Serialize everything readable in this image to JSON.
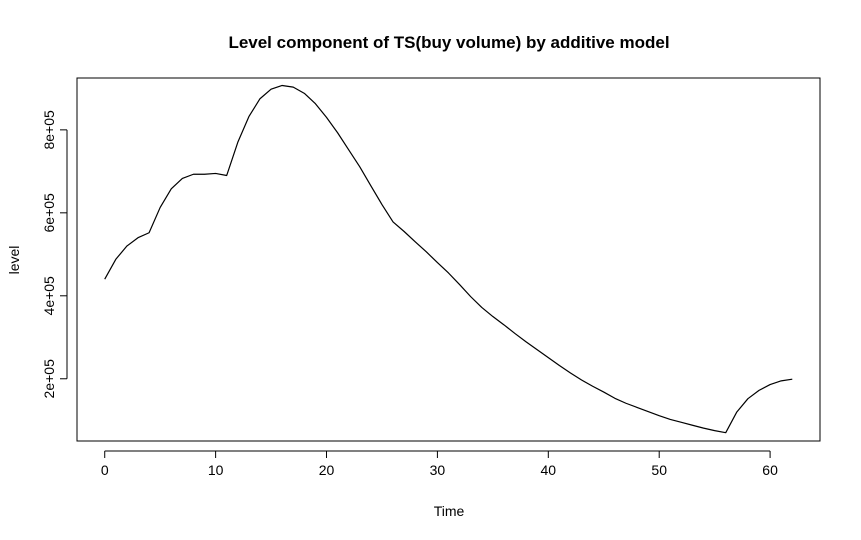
{
  "chart_data": {
    "type": "line",
    "title": "Level component of TS(buy volume) by additive model",
    "xlabel": "Time",
    "ylabel": "level",
    "xlim": [
      -2.5,
      64.5
    ],
    "ylim": [
      50000,
      925000
    ],
    "x_ticks": [
      0,
      10,
      20,
      30,
      40,
      50,
      60
    ],
    "x_tick_labels": [
      "0",
      "10",
      "20",
      "30",
      "40",
      "50",
      "60"
    ],
    "y_ticks": [
      200000,
      400000,
      600000,
      800000
    ],
    "y_tick_labels": [
      "2e+05",
      "4e+05",
      "6e+05",
      "8e+05"
    ],
    "grid": false,
    "series": [
      {
        "color": "#000000",
        "x": [
          0,
          1,
          2,
          3,
          4,
          5,
          6,
          7,
          8,
          9,
          10,
          11,
          12,
          13,
          14,
          15,
          16,
          17,
          18,
          19,
          20,
          21,
          22,
          23,
          24,
          25,
          26,
          27,
          28,
          29,
          30,
          31,
          32,
          33,
          34,
          35,
          36,
          37,
          38,
          39,
          40,
          41,
          42,
          43,
          44,
          45,
          46,
          47,
          48,
          49,
          50,
          51,
          52,
          53,
          54,
          55,
          56,
          57,
          58,
          59,
          60,
          61,
          62
        ],
        "values": [
          440000,
          488000,
          520000,
          540000,
          552000,
          613000,
          658000,
          683000,
          693000,
          693000,
          695000,
          690000,
          770000,
          832000,
          875000,
          898000,
          907000,
          903000,
          888000,
          863000,
          830000,
          793000,
          752000,
          711000,
          665000,
          620000,
          578000,
          555000,
          530000,
          506000,
          480000,
          455000,
          427000,
          398000,
          372000,
          350000,
          330000,
          309000,
          289000,
          270000,
          251000,
          232000,
          214000,
          197000,
          182000,
          168000,
          153000,
          141000,
          131000,
          121000,
          111000,
          102000,
          95000,
          88000,
          81000,
          75000,
          70000,
          120000,
          152000,
          172000,
          186000,
          195000,
          199000
        ]
      }
    ]
  }
}
